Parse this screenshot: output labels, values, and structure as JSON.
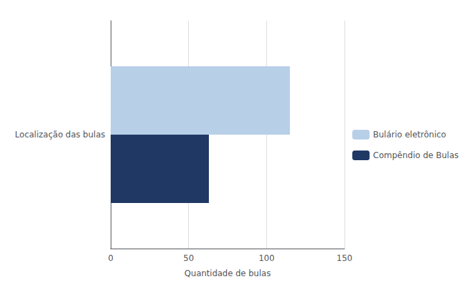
{
  "chart_data": {
    "type": "bar",
    "orientation": "horizontal",
    "categories": [
      "Localização das bulas"
    ],
    "series": [
      {
        "name": "Bulário eletrônico",
        "color": "#b8cfe8",
        "values": [
          115
        ]
      },
      {
        "name": "Compêndio de Bulas",
        "color": "#1f3864",
        "values": [
          63
        ]
      }
    ],
    "xlabel": "Quantidade de bulas",
    "xlim": [
      0,
      150
    ],
    "xticks": [
      0,
      50,
      100,
      150
    ],
    "grid": true,
    "legend": "right"
  }
}
